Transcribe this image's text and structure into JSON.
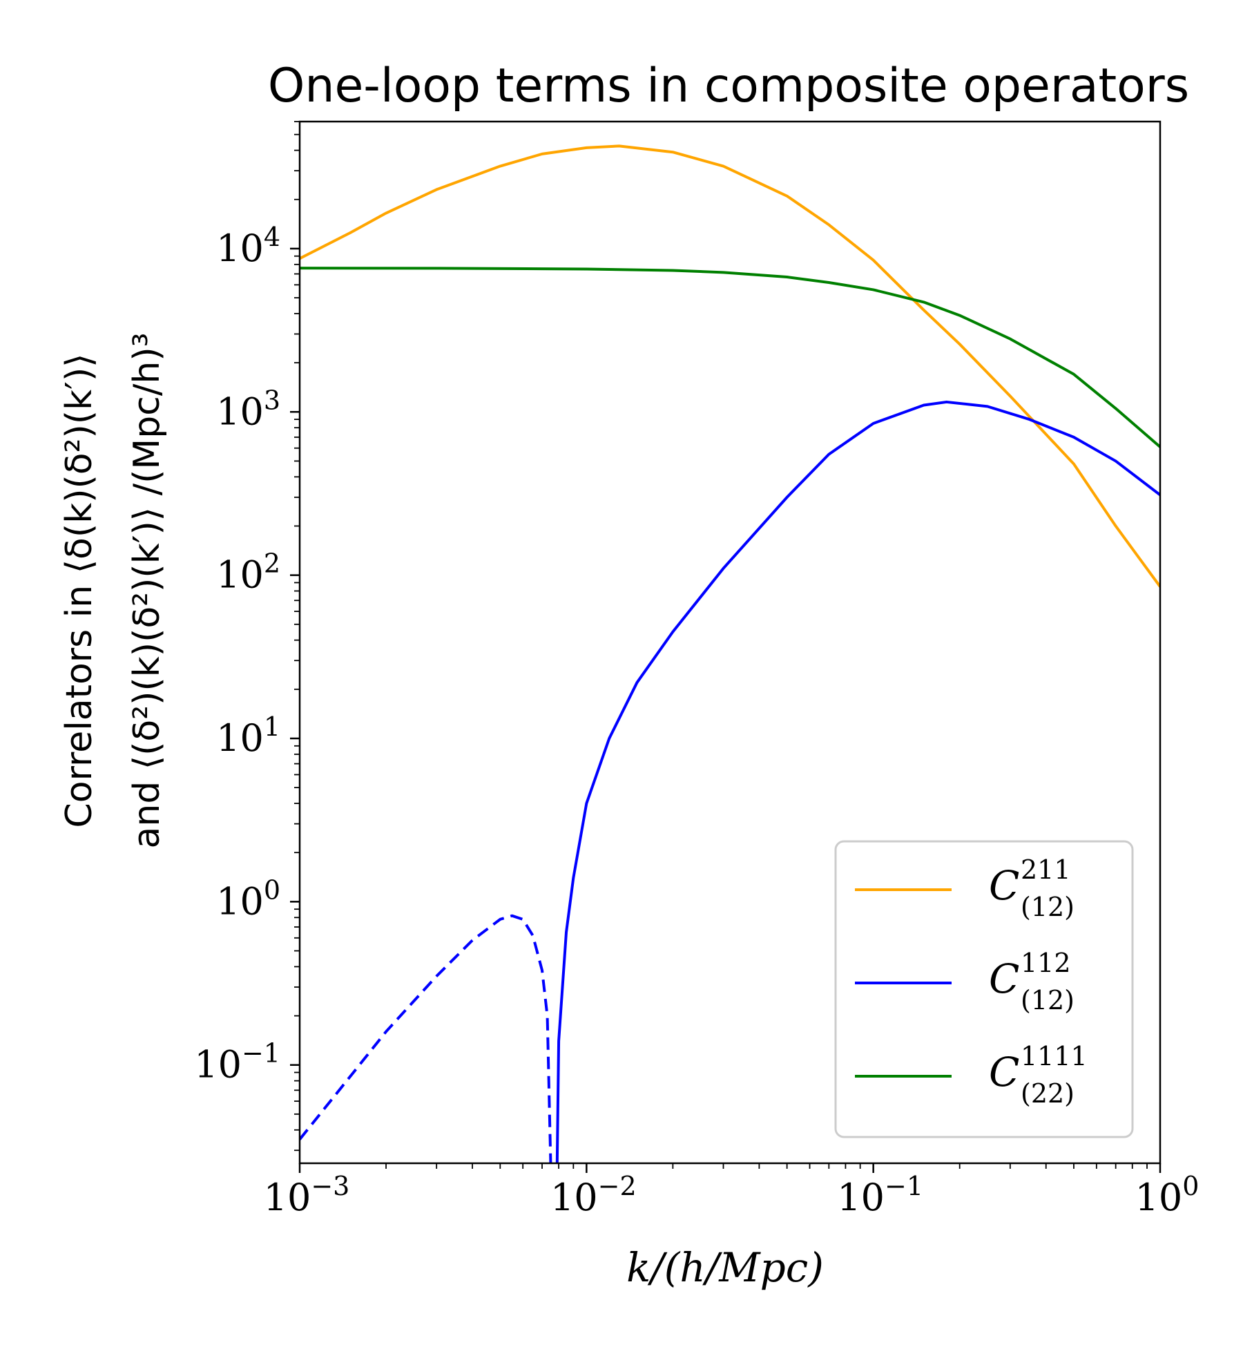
{
  "chart_data": {
    "type": "line",
    "title": "One-loop terms in composite operators",
    "xlabel": "k/(h/Mpc)",
    "ylabel_line1": "Correlators in ⟨δ(k)(δ²)(k′)⟩",
    "ylabel_line2": "and ⟨(δ²)(k)(δ²)(k′)⟩ /(Mpc/h)³",
    "xscale": "log",
    "yscale": "log",
    "xlim": [
      0.001,
      1
    ],
    "ylim": [
      0.025,
      60000
    ],
    "x_ticks": [
      {
        "value": 0.001,
        "base": "10",
        "exp": "−3"
      },
      {
        "value": 0.01,
        "base": "10",
        "exp": "−2"
      },
      {
        "value": 0.1,
        "base": "10",
        "exp": "−1"
      },
      {
        "value": 1,
        "base": "10",
        "exp": "0"
      }
    ],
    "y_ticks": [
      {
        "value": 0.1,
        "base": "10",
        "exp": "−1"
      },
      {
        "value": 1,
        "base": "10",
        "exp": "0"
      },
      {
        "value": 10,
        "base": "10",
        "exp": "1"
      },
      {
        "value": 100,
        "base": "10",
        "exp": "2"
      },
      {
        "value": 1000,
        "base": "10",
        "exp": "3"
      },
      {
        "value": 10000,
        "base": "10",
        "exp": "4"
      }
    ],
    "grid": false,
    "legend_position": "lower-right",
    "series": [
      {
        "name": "C^{211}_{(12)}",
        "label_base": "C",
        "label_sup": "211",
        "label_sub": "(12)",
        "color": "#ffa500",
        "style": "solid",
        "x": [
          0.001,
          0.0015,
          0.002,
          0.003,
          0.005,
          0.007,
          0.01,
          0.013,
          0.02,
          0.03,
          0.05,
          0.07,
          0.1,
          0.15,
          0.2,
          0.3,
          0.5,
          0.7,
          1.0
        ],
        "y": [
          8700,
          12500,
          16500,
          23000,
          32000,
          38000,
          41500,
          42500,
          39000,
          32000,
          21000,
          14000,
          8500,
          4200,
          2600,
          1250,
          480,
          200,
          85
        ]
      },
      {
        "name": "C^{112}_{(12)} (negative, dashed)",
        "label_base": "C",
        "label_sup": "112",
        "label_sub": "(12)",
        "color": "#0000ff",
        "style": "dashed",
        "x": [
          0.001,
          0.0015,
          0.002,
          0.003,
          0.004,
          0.005,
          0.0055,
          0.006,
          0.0065,
          0.007,
          0.0073,
          0.0075
        ],
        "y": [
          0.035,
          0.085,
          0.16,
          0.35,
          0.58,
          0.78,
          0.82,
          0.78,
          0.62,
          0.38,
          0.2,
          0.025
        ]
      },
      {
        "name": "C^{112}_{(12)}",
        "label_base": "C",
        "label_sup": "112",
        "label_sub": "(12)",
        "color": "#0000ff",
        "style": "solid",
        "x": [
          0.0079,
          0.008,
          0.0085,
          0.009,
          0.01,
          0.012,
          0.015,
          0.02,
          0.03,
          0.05,
          0.07,
          0.1,
          0.15,
          0.18,
          0.25,
          0.35,
          0.5,
          0.7,
          1.0
        ],
        "y": [
          0.025,
          0.14,
          0.65,
          1.4,
          4.0,
          10,
          22,
          45,
          110,
          300,
          550,
          850,
          1100,
          1150,
          1080,
          900,
          700,
          500,
          310
        ]
      },
      {
        "name": "C^{1111}_{(22)}",
        "label_base": "C",
        "label_sup": "1111",
        "label_sub": "(22)",
        "color": "#008000",
        "style": "solid",
        "x": [
          0.001,
          0.003,
          0.01,
          0.02,
          0.03,
          0.05,
          0.07,
          0.1,
          0.15,
          0.2,
          0.3,
          0.5,
          0.7,
          1.0
        ],
        "y": [
          7600,
          7580,
          7500,
          7350,
          7150,
          6700,
          6200,
          5600,
          4700,
          3900,
          2800,
          1700,
          1050,
          610
        ]
      }
    ],
    "legend": [
      {
        "series_index": 0
      },
      {
        "series_index": 2
      },
      {
        "series_index": 3
      }
    ]
  }
}
